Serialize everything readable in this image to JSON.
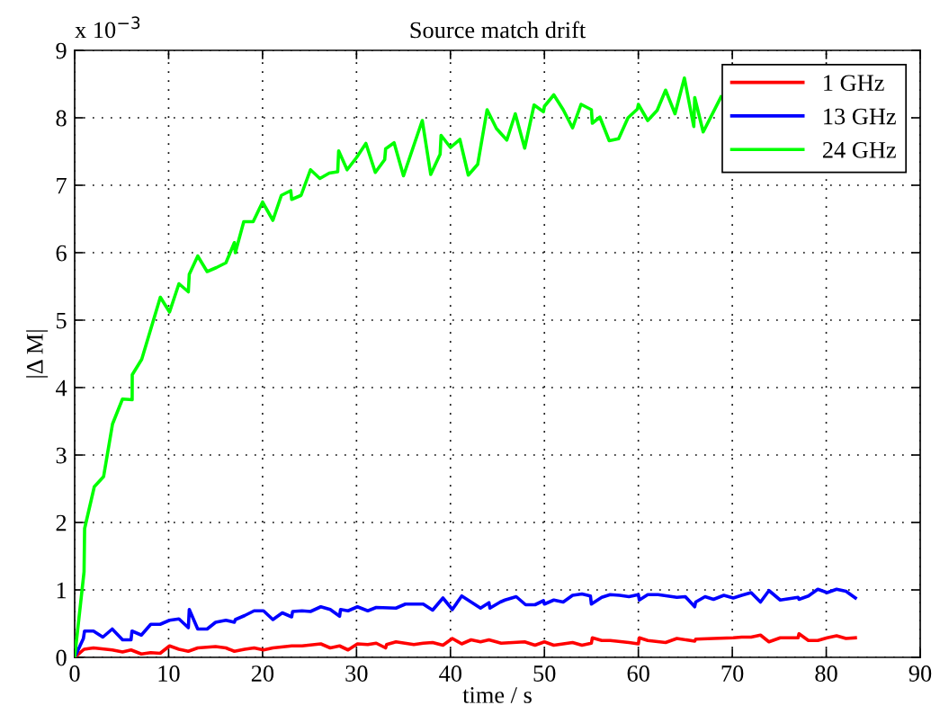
{
  "chart_data": {
    "type": "line",
    "title": "Source match drift",
    "xlabel": "time / s",
    "ylabel": "|Δ M|",
    "annotations": [
      "x 10$^{−3}$"
    ],
    "xlim": [
      0,
      90
    ],
    "xticks": [
      0,
      10,
      20,
      30,
      40,
      50,
      60,
      70,
      80,
      90
    ],
    "ylim": [
      0,
      9
    ],
    "yticks": [
      0,
      1,
      2,
      3,
      4,
      5,
      6,
      7,
      8,
      9
    ],
    "grid": true,
    "legend": "top right",
    "line_style": "solid",
    "marker": "none",
    "series": [
      {
        "name": "1 GHz",
        "color": "#ff0000",
        "x": [
          0,
          1.0,
          2.0,
          4.0,
          5.1,
          6.0,
          7.1,
          8.1,
          9.1,
          10.1,
          11.1,
          12.1,
          13.1,
          15.0,
          16.1,
          17.0,
          18.1,
          19.1,
          20.1,
          21.1,
          23.1,
          24.2,
          26.2,
          27.2,
          28.2,
          29.1,
          30.1,
          31.2,
          32.1,
          33.1,
          33.2,
          34.2,
          36.1,
          37.1,
          38.1,
          39.2,
          40.2,
          41.2,
          42.2,
          43.2,
          44.1,
          45.4,
          47.9,
          49.0,
          50.0,
          51.0,
          53.0,
          54.0,
          55.0,
          55.1,
          56.1,
          57.0,
          59.0,
          60.0,
          60.1,
          61.0,
          62.9,
          64.1,
          66.0,
          66.1,
          68.0,
          70.1,
          71.0,
          72.0,
          73.0,
          73.9,
          75.1,
          77.0,
          77.1,
          78.1,
          79.1,
          80.1,
          81.1,
          82.1,
          83.1
        ],
        "values": [
          0,
          0.12,
          0.14,
          0.11,
          0.08,
          0.11,
          0.05,
          0.07,
          0.06,
          0.17,
          0.12,
          0.09,
          0.14,
          0.16,
          0.14,
          0.09,
          0.12,
          0.14,
          0.11,
          0.14,
          0.17,
          0.17,
          0.2,
          0.14,
          0.17,
          0.11,
          0.2,
          0.19,
          0.21,
          0.14,
          0.19,
          0.23,
          0.19,
          0.21,
          0.22,
          0.18,
          0.28,
          0.2,
          0.26,
          0.23,
          0.26,
          0.21,
          0.23,
          0.18,
          0.23,
          0.18,
          0.22,
          0.18,
          0.21,
          0.29,
          0.25,
          0.25,
          0.22,
          0.2,
          0.29,
          0.25,
          0.22,
          0.28,
          0.24,
          0.27,
          0.28,
          0.29,
          0.3,
          0.3,
          0.33,
          0.23,
          0.29,
          0.29,
          0.35,
          0.25,
          0.25,
          0.29,
          0.32,
          0.28,
          0.29
        ]
      },
      {
        "name": "13 GHz",
        "color": "#0000ff",
        "x": [
          0,
          0.93,
          1.05,
          2.0,
          3.0,
          4.0,
          5.1,
          6.0,
          6.1,
          7.1,
          8.1,
          9.1,
          10.1,
          11.1,
          12.1,
          12.2,
          13.1,
          14.1,
          15.0,
          16.1,
          17.0,
          17.1,
          18.1,
          19.1,
          20.1,
          21.1,
          22.1,
          23.1,
          23.2,
          24.2,
          25.1,
          26.2,
          27.2,
          28.2,
          28.3,
          29.1,
          30.1,
          31.2,
          32.1,
          34.2,
          35.2,
          37.1,
          38.1,
          39.2,
          40.2,
          41.2,
          43.2,
          44.1,
          44.2,
          45.3,
          45.8,
          47.0,
          48.0,
          49.0,
          49.9,
          50.0,
          51.0,
          52.0,
          53.0,
          54.0,
          54.9,
          55.0,
          56.1,
          57.0,
          58.0,
          59.0,
          60.0,
          60.1,
          61.0,
          62.1,
          64.1,
          65.0,
          66.0,
          66.1,
          67.1,
          68.0,
          69.1,
          70.1,
          71.0,
          72.0,
          73.0,
          73.9,
          75.1,
          77.0,
          77.1,
          78.1,
          79.1,
          80.1,
          81.1,
          82.1,
          83.1
        ],
        "values": [
          0,
          0.28,
          0.39,
          0.39,
          0.3,
          0.42,
          0.26,
          0.26,
          0.39,
          0.33,
          0.49,
          0.49,
          0.55,
          0.57,
          0.44,
          0.71,
          0.42,
          0.42,
          0.52,
          0.55,
          0.52,
          0.56,
          0.62,
          0.69,
          0.69,
          0.56,
          0.66,
          0.6,
          0.68,
          0.69,
          0.68,
          0.75,
          0.71,
          0.61,
          0.71,
          0.69,
          0.75,
          0.69,
          0.74,
          0.73,
          0.79,
          0.79,
          0.7,
          0.88,
          0.71,
          0.91,
          0.73,
          0.81,
          0.73,
          0.82,
          0.85,
          0.9,
          0.78,
          0.78,
          0.84,
          0.79,
          0.85,
          0.82,
          0.92,
          0.94,
          0.91,
          0.79,
          0.89,
          0.93,
          0.92,
          0.9,
          0.93,
          0.85,
          0.93,
          0.93,
          0.89,
          0.9,
          0.75,
          0.82,
          0.9,
          0.86,
          0.92,
          0.88,
          0.92,
          0.96,
          0.82,
          0.99,
          0.85,
          0.89,
          0.86,
          0.91,
          1.01,
          0.96,
          1.01,
          0.98,
          0.88
        ]
      },
      {
        "name": "24 GHz",
        "color": "#00ff00",
        "x": [
          0,
          1.0,
          1.06,
          2.09,
          3.08,
          4.03,
          5.09,
          6.12,
          6.13,
          7.14,
          8.13,
          9.12,
          10.1,
          11.1,
          12.1,
          12.2,
          13.1,
          14.1,
          15.1,
          16.1,
          17.0,
          17.1,
          18.0,
          19.0,
          20.0,
          21.1,
          22.0,
          23.0,
          23.1,
          24.1,
          25.1,
          26.1,
          27.1,
          28.0,
          28.1,
          29.0,
          30.0,
          31.0,
          32.0,
          33.0,
          33.1,
          34.0,
          35.0,
          37.0,
          37.9,
          38.9,
          39.0,
          40.0,
          41.0,
          41.9,
          42.9,
          43.9,
          44.9,
          46.0,
          46.9,
          47.9,
          48.9,
          49.9,
          50.0,
          51.0,
          52.0,
          53.0,
          53.9,
          55.0,
          55.1,
          55.9,
          56.9,
          57.9,
          58.9,
          59.9,
          60.0,
          61.0,
          62.0,
          62.9,
          63.9,
          64.9,
          65.9,
          66.0,
          66.9,
          68.8
        ],
        "values": [
          0,
          1.27,
          1.91,
          2.53,
          2.68,
          3.46,
          3.83,
          3.82,
          4.19,
          4.42,
          4.88,
          5.34,
          5.12,
          5.54,
          5.42,
          5.68,
          5.95,
          5.72,
          5.78,
          5.85,
          6.15,
          6.0,
          6.46,
          6.46,
          6.75,
          6.48,
          6.85,
          6.92,
          6.79,
          6.85,
          7.23,
          7.1,
          7.18,
          7.2,
          7.51,
          7.23,
          7.41,
          7.62,
          7.19,
          7.38,
          7.54,
          7.63,
          7.14,
          7.96,
          7.16,
          7.46,
          7.74,
          7.56,
          7.68,
          7.15,
          7.31,
          8.12,
          7.84,
          7.67,
          8.06,
          7.55,
          8.19,
          8.09,
          8.17,
          8.34,
          8.12,
          7.85,
          8.2,
          8.12,
          7.92,
          8.01,
          7.66,
          7.69,
          8.0,
          8.13,
          8.2,
          7.96,
          8.11,
          8.41,
          8.06,
          8.59,
          7.87,
          8.3,
          7.79,
          8.31
        ]
      }
    ]
  }
}
